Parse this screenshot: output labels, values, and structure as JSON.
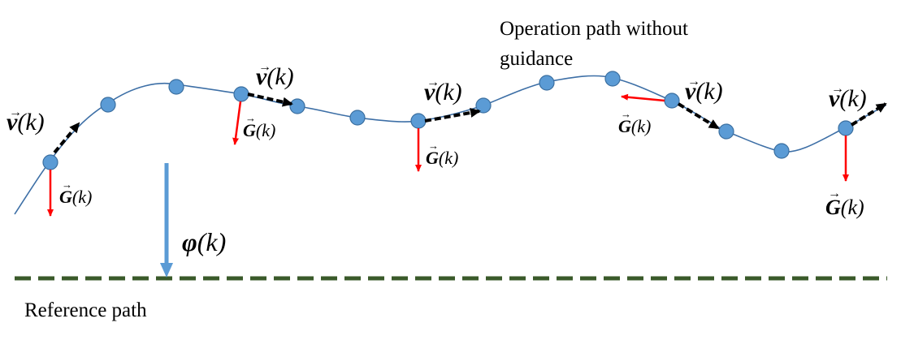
{
  "labels": {
    "operation_path": [
      "Operation path without",
      "guidance"
    ],
    "reference_path": "Reference path"
  },
  "symbols": {
    "v": "v",
    "G": "G",
    "phi": "φ",
    "k_arg": "(k)",
    "vector_arrow": "→"
  },
  "colors": {
    "path_line": "#3d6fa6",
    "point_fill": "#5b9bd5",
    "point_stroke": "#3b6fa0",
    "guidance_arrow": "#ff0000",
    "velocity_arrow": "#000000",
    "offset_arrow": "#5b9bd5",
    "reference_line": "#3a5a2a"
  }
}
